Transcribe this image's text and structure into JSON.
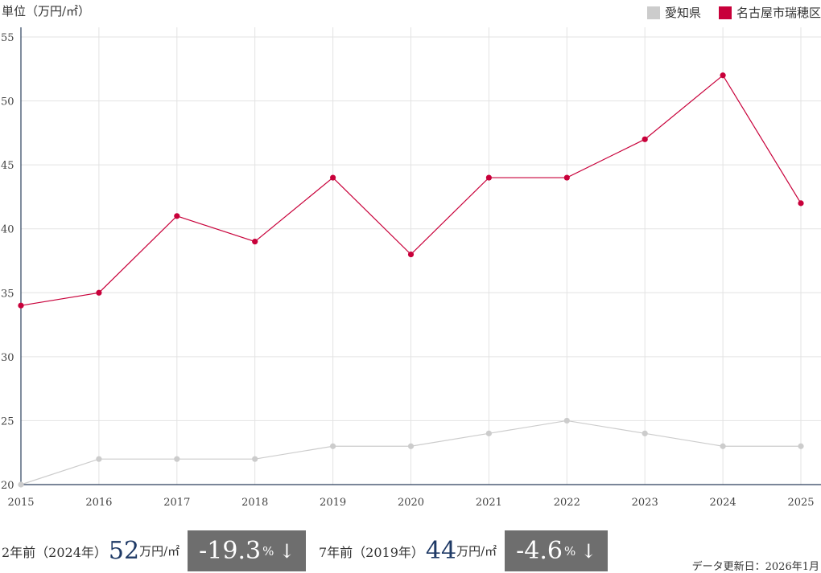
{
  "header": {
    "unit_label": "単位（万円/㎡）"
  },
  "legend": [
    {
      "label": "愛知県",
      "color": "#cccccc"
    },
    {
      "label": "名古屋市瑞穂区",
      "color": "#c8003a"
    }
  ],
  "chart_data": {
    "type": "line",
    "x": [
      "2015",
      "2016",
      "2017",
      "2018",
      "2019",
      "2020",
      "2021",
      "2022",
      "2023",
      "2024",
      "2025"
    ],
    "ylim": [
      20,
      55
    ],
    "yticks": [
      "20",
      "25",
      "30",
      "35",
      "40",
      "45",
      "50",
      "55"
    ],
    "grid": true,
    "legend_position": "top-right",
    "series": [
      {
        "name": "愛知県",
        "color": "#cccccc",
        "values": [
          20,
          22,
          22,
          22,
          23,
          23,
          24,
          25,
          24,
          23,
          23
        ]
      },
      {
        "name": "名古屋市瑞穂区",
        "color": "#c8003a",
        "values": [
          34,
          35,
          41,
          39,
          44,
          38,
          44,
          44,
          47,
          52,
          42
        ]
      }
    ]
  },
  "footer": {
    "stat1": {
      "label": "2年前（2024年）",
      "value": "52",
      "unit": "万円/㎡",
      "change": "-19.3",
      "pct": "%",
      "arrow": "↓"
    },
    "stat2": {
      "label": "7年前（2019年）",
      "value": "44",
      "unit": "万円/㎡",
      "change": "-4.6",
      "pct": "%",
      "arrow": "↓"
    },
    "updated": "データ更新日：2026年1月"
  }
}
